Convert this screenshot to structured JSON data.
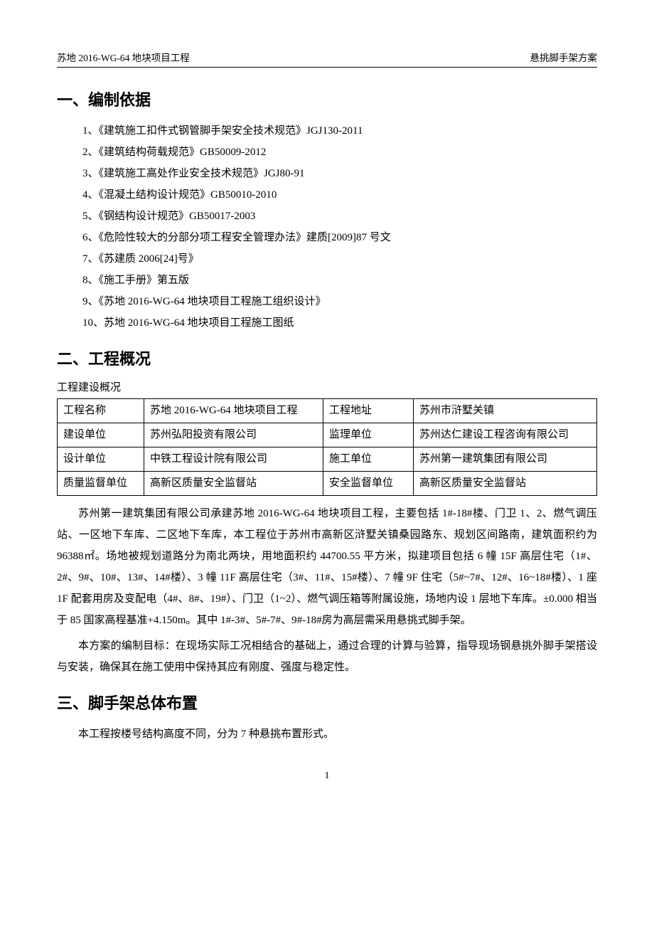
{
  "header": {
    "left": "苏地 2016-WG-64 地块项目工程",
    "right": "悬挑脚手架方案"
  },
  "section1": {
    "title": "一、编制依据",
    "items": [
      "1、《建筑施工扣件式钢管脚手架安全技术规范》JGJ130-2011",
      "2、《建筑结构荷载规范》GB50009-2012",
      "3、《建筑施工高处作业安全技术规范》JGJ80-91",
      "4、《混凝土结构设计规范》GB50010-2010",
      "5、《钢结构设计规范》GB50017-2003",
      "6、《危险性较大的分部分项工程安全管理办法》建质[2009]87 号文",
      "7、《苏建质 2006[24]号》",
      "8、《施工手册》第五版",
      "9、《苏地 2016-WG-64 地块项目工程施工组织设计》",
      "10、苏地 2016-WG-64 地块项目工程施工图纸"
    ]
  },
  "section2": {
    "title": "二、工程概况",
    "subtitle": "工程建设概况",
    "table": {
      "rows": [
        {
          "l1": "工程名称",
          "v1": "苏地 2016-WG-64 地块项目工程",
          "l2": "工程地址",
          "v2": "苏州市浒墅关镇"
        },
        {
          "l1": "建设单位",
          "v1": "苏州弘阳投资有限公司",
          "l2": "监理单位",
          "v2": "苏州达仁建设工程咨询有限公司"
        },
        {
          "l1": "设计单位",
          "v1": "中铁工程设计院有限公司",
          "l2": "施工单位",
          "v2": "苏州第一建筑集团有限公司"
        },
        {
          "l1": "质量监督单位",
          "v1": "高新区质量安全监督站",
          "l2": "安全监督单位",
          "v2": "高新区质量安全监督站"
        }
      ]
    },
    "para1": "苏州第一建筑集团有限公司承建苏地 2016-WG-64 地块项目工程，主要包括 1#-18#楼、门卫 1、2、燃气调压站、一区地下车库、二区地下车库，本工程位于苏州市高新区浒墅关镇桑园路东、规划区间路南，建筑面积约为 96388㎡。场地被规划道路分为南北两块，用地面积约 44700.55 平方米，拟建项目包括 6 幢 15F 高层住宅（1#、2#、9#、10#、13#、14#楼）、3 幢 11F 高层住宅（3#、11#、15#楼）、7 幢 9F 住宅（5#~7#、12#、16~18#楼）、1 座 1F 配套用房及变配电（4#、8#、19#）、门卫（1~2）、燃气调压箱等附属设施，场地内设 1 层地下车库。±0.000 相当于 85 国家高程基准+4.150m。其中 1#-3#、5#-7#、9#-18#房为高层需采用悬挑式脚手架。",
    "para2": "本方案的编制目标：在现场实际工况相结合的基础上，通过合理的计算与验算，指导现场钢悬挑外脚手架搭设与安装，确保其在施工使用中保持其应有刚度、强度与稳定性。"
  },
  "section3": {
    "title": "三、脚手架总体布置",
    "para": "本工程按楼号结构高度不同，分为 7 种悬挑布置形式。"
  },
  "pageNumber": "1"
}
